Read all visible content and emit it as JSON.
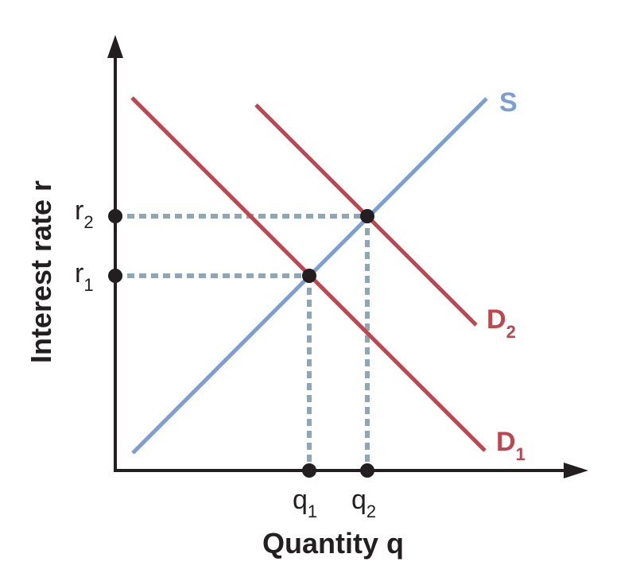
{
  "axes": {
    "x_title": "Quantity q",
    "y_title": "Interest rate r"
  },
  "ticks": {
    "x": [
      {
        "base": "q",
        "sub": "1"
      },
      {
        "base": "q",
        "sub": "2"
      }
    ],
    "y": [
      {
        "base": "r",
        "sub": "1"
      },
      {
        "base": "r",
        "sub": "2"
      }
    ]
  },
  "curves": {
    "supply": {
      "label": "S",
      "color": "#7b9fd4"
    },
    "demand1": {
      "base": "D",
      "sub": "1",
      "color": "#c1454f"
    },
    "demand2": {
      "base": "D",
      "sub": "2",
      "color": "#c1454f"
    }
  },
  "colors": {
    "axis": "#231f20",
    "guide": "#8ea7b7",
    "point": "#231f20"
  }
}
